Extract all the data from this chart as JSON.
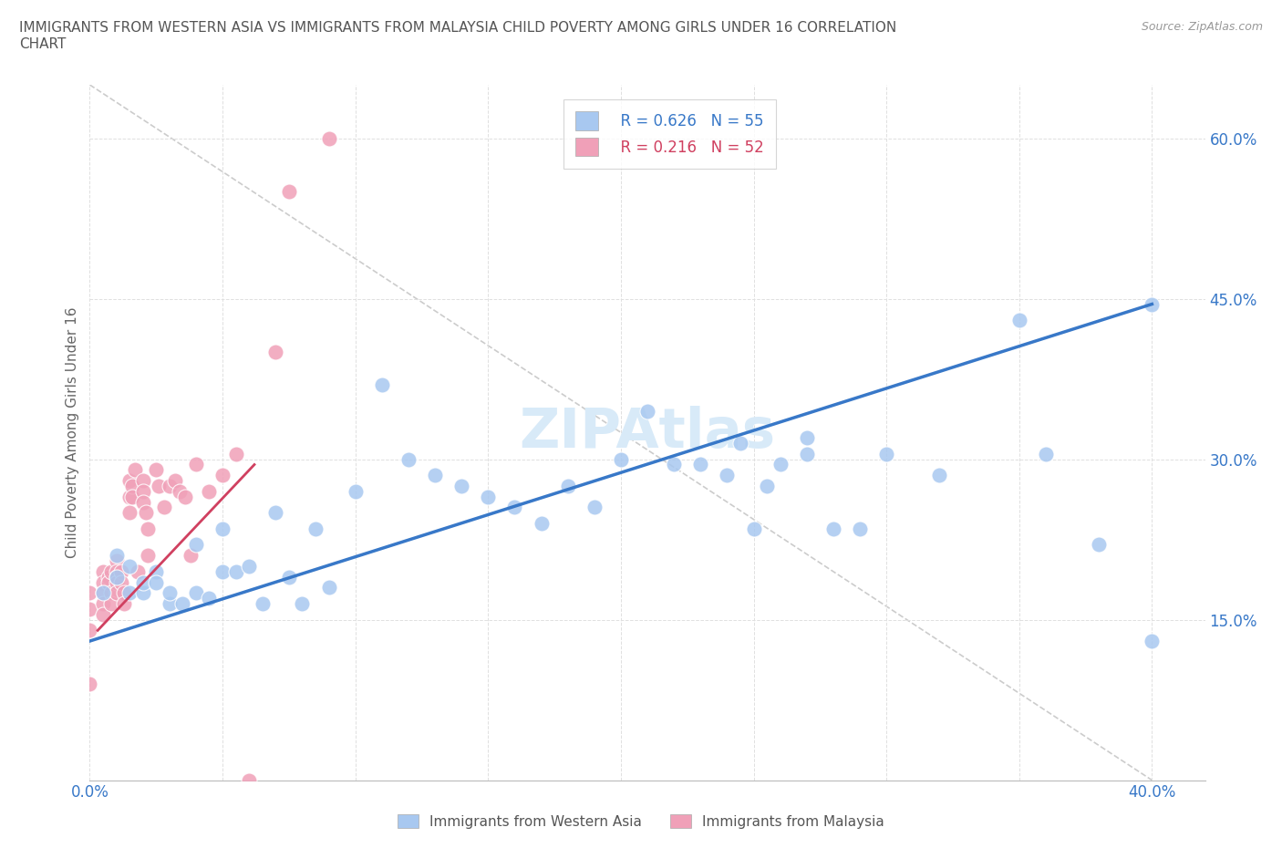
{
  "title": "IMMIGRANTS FROM WESTERN ASIA VS IMMIGRANTS FROM MALAYSIA CHILD POVERTY AMONG GIRLS UNDER 16 CORRELATION\nCHART",
  "source_text": "Source: ZipAtlas.com",
  "ylabel": "Child Poverty Among Girls Under 16",
  "xlim": [
    0.0,
    0.42
  ],
  "ylim": [
    0.0,
    0.65
  ],
  "xtick_positions": [
    0.0,
    0.05,
    0.1,
    0.15,
    0.2,
    0.25,
    0.3,
    0.35,
    0.4
  ],
  "xticklabels": [
    "0.0%",
    "",
    "",
    "",
    "",
    "",
    "",
    "",
    "40.0%"
  ],
  "ytick_positions": [
    0.15,
    0.3,
    0.45,
    0.6
  ],
  "ytick_labels": [
    "15.0%",
    "30.0%",
    "45.0%",
    "60.0%"
  ],
  "legend_r_blue": "R = 0.626",
  "legend_n_blue": "N = 55",
  "legend_r_pink": "R = 0.216",
  "legend_n_pink": "N = 52",
  "color_blue": "#a8c8f0",
  "color_blue_line": "#3878c8",
  "color_pink": "#f0a0b8",
  "color_pink_line": "#d04060",
  "color_grid": "#e0e0e0",
  "color_refline": "#cccccc",
  "watermark_color": "#d8eaf8",
  "blue_line_x0": 0.0,
  "blue_line_y0": 0.13,
  "blue_line_x1": 0.4,
  "blue_line_y1": 0.445,
  "pink_line_x0": 0.003,
  "pink_line_y0": 0.14,
  "pink_line_x1": 0.062,
  "pink_line_y1": 0.295,
  "blue_x": [
    0.005,
    0.01,
    0.01,
    0.015,
    0.015,
    0.02,
    0.02,
    0.025,
    0.025,
    0.03,
    0.03,
    0.035,
    0.04,
    0.04,
    0.045,
    0.05,
    0.05,
    0.055,
    0.06,
    0.065,
    0.07,
    0.075,
    0.08,
    0.085,
    0.09,
    0.1,
    0.11,
    0.12,
    0.13,
    0.14,
    0.15,
    0.16,
    0.17,
    0.18,
    0.19,
    0.2,
    0.21,
    0.22,
    0.23,
    0.24,
    0.245,
    0.25,
    0.255,
    0.26,
    0.27,
    0.27,
    0.28,
    0.29,
    0.3,
    0.32,
    0.35,
    0.36,
    0.38,
    0.4,
    0.4
  ],
  "blue_y": [
    0.175,
    0.19,
    0.21,
    0.175,
    0.2,
    0.175,
    0.185,
    0.195,
    0.185,
    0.165,
    0.175,
    0.165,
    0.175,
    0.22,
    0.17,
    0.195,
    0.235,
    0.195,
    0.2,
    0.165,
    0.25,
    0.19,
    0.165,
    0.235,
    0.18,
    0.27,
    0.37,
    0.3,
    0.285,
    0.275,
    0.265,
    0.255,
    0.24,
    0.275,
    0.255,
    0.3,
    0.345,
    0.295,
    0.295,
    0.285,
    0.315,
    0.235,
    0.275,
    0.295,
    0.305,
    0.32,
    0.235,
    0.235,
    0.305,
    0.285,
    0.43,
    0.305,
    0.22,
    0.445,
    0.13
  ],
  "pink_x": [
    0.0,
    0.0,
    0.0,
    0.0,
    0.005,
    0.005,
    0.005,
    0.005,
    0.005,
    0.007,
    0.007,
    0.008,
    0.008,
    0.008,
    0.01,
    0.01,
    0.01,
    0.01,
    0.01,
    0.012,
    0.012,
    0.013,
    0.013,
    0.015,
    0.015,
    0.015,
    0.016,
    0.016,
    0.017,
    0.018,
    0.02,
    0.02,
    0.02,
    0.021,
    0.022,
    0.022,
    0.025,
    0.026,
    0.028,
    0.03,
    0.032,
    0.034,
    0.036,
    0.038,
    0.04,
    0.045,
    0.05,
    0.055,
    0.06,
    0.07,
    0.075,
    0.09
  ],
  "pink_y": [
    0.175,
    0.16,
    0.14,
    0.09,
    0.195,
    0.185,
    0.175,
    0.165,
    0.155,
    0.19,
    0.185,
    0.195,
    0.175,
    0.165,
    0.205,
    0.195,
    0.19,
    0.185,
    0.175,
    0.195,
    0.185,
    0.175,
    0.165,
    0.28,
    0.265,
    0.25,
    0.275,
    0.265,
    0.29,
    0.195,
    0.28,
    0.27,
    0.26,
    0.25,
    0.235,
    0.21,
    0.29,
    0.275,
    0.255,
    0.275,
    0.28,
    0.27,
    0.265,
    0.21,
    0.295,
    0.27,
    0.285,
    0.305,
    0.0,
    0.4,
    0.55,
    0.6
  ]
}
